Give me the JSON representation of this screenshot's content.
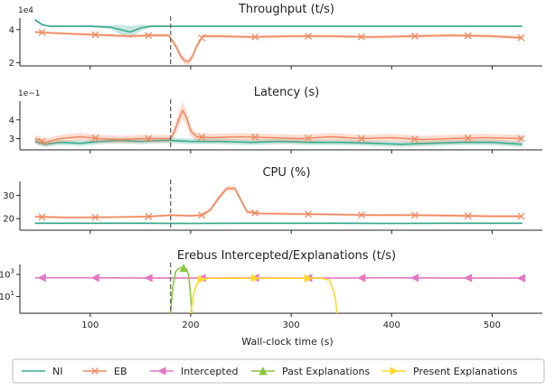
{
  "chart_data": [
    {
      "type": "line",
      "title": "Throughput (t/s)",
      "scale_label": "1e4",
      "ylim": [
        1.8,
        4.7
      ],
      "yticks": [
        {
          "v": 2,
          "label": "2"
        },
        {
          "v": 4,
          "label": "4"
        }
      ],
      "xlim": [
        30,
        550
      ],
      "series": [
        {
          "name": "NI",
          "color": "#3aa98d",
          "x": [
            45,
            52,
            60,
            80,
            100,
            120,
            130,
            140,
            150,
            160,
            180,
            220,
            260,
            300,
            340,
            380,
            420,
            460,
            500,
            530
          ],
          "y": [
            4.6,
            4.3,
            4.2,
            4.2,
            4.2,
            4.15,
            4.0,
            3.85,
            4.1,
            4.2,
            4.2,
            4.2,
            4.2,
            4.2,
            4.2,
            4.2,
            4.2,
            4.2,
            4.2,
            4.2
          ],
          "band": [
            0.08,
            0.06,
            0.05,
            0.05,
            0.05,
            0.1,
            0.3,
            0.35,
            0.2,
            0.06,
            0.05,
            0.05,
            0.05,
            0.05,
            0.05,
            0.05,
            0.05,
            0.05,
            0.05,
            0.05
          ]
        },
        {
          "name": "EB",
          "color": "#ef8a62",
          "x": [
            45,
            60,
            80,
            100,
            120,
            140,
            160,
            178,
            182,
            186,
            190,
            194,
            198,
            202,
            206,
            212,
            230,
            260,
            300,
            340,
            380,
            420,
            460,
            500,
            530
          ],
          "y": [
            3.85,
            3.8,
            3.75,
            3.7,
            3.65,
            3.6,
            3.65,
            3.65,
            3.3,
            2.9,
            2.4,
            2.1,
            2.05,
            2.4,
            3.0,
            3.6,
            3.6,
            3.55,
            3.6,
            3.6,
            3.55,
            3.6,
            3.65,
            3.6,
            3.5
          ],
          "band": [
            0.08,
            0.08,
            0.08,
            0.1,
            0.1,
            0.1,
            0.1,
            0.1,
            0.15,
            0.2,
            0.2,
            0.2,
            0.2,
            0.2,
            0.15,
            0.12,
            0.1,
            0.1,
            0.1,
            0.1,
            0.1,
            0.1,
            0.1,
            0.1,
            0.1
          ]
        }
      ]
    },
    {
      "type": "line",
      "title": "Latency (s)",
      "scale_label": "1e−1",
      "ylim": [
        2.4,
        5.0
      ],
      "yticks": [
        {
          "v": 3,
          "label": "3"
        },
        {
          "v": 4,
          "label": "4"
        }
      ],
      "xlim": [
        30,
        550
      ],
      "series": [
        {
          "name": "NI",
          "color": "#3aa98d",
          "x": [
            45,
            55,
            70,
            90,
            110,
            130,
            150,
            170,
            180,
            200,
            230,
            260,
            290,
            320,
            350,
            380,
            410,
            440,
            470,
            500,
            530
          ],
          "y": [
            2.85,
            2.7,
            2.8,
            2.75,
            2.85,
            2.9,
            2.85,
            2.9,
            2.9,
            2.85,
            2.85,
            2.8,
            2.85,
            2.8,
            2.8,
            2.75,
            2.7,
            2.75,
            2.8,
            2.8,
            2.7
          ],
          "band": [
            0.15,
            0.15,
            0.15,
            0.15,
            0.15,
            0.15,
            0.15,
            0.15,
            0.15,
            0.15,
            0.15,
            0.15,
            0.15,
            0.15,
            0.15,
            0.15,
            0.15,
            0.15,
            0.15,
            0.15,
            0.15
          ]
        },
        {
          "name": "EB",
          "color": "#ef8a62",
          "x": [
            45,
            55,
            70,
            90,
            110,
            130,
            150,
            170,
            180,
            184,
            188,
            192,
            196,
            200,
            206,
            220,
            250,
            280,
            310,
            340,
            370,
            400,
            430,
            460,
            490,
            530
          ],
          "y": [
            3.0,
            2.8,
            3.0,
            3.1,
            3.0,
            2.95,
            3.0,
            3.0,
            3.0,
            3.4,
            4.0,
            4.5,
            4.1,
            3.4,
            3.1,
            3.05,
            3.1,
            3.05,
            3.0,
            3.1,
            3.0,
            3.05,
            2.95,
            3.0,
            3.05,
            3.0
          ],
          "band": [
            0.2,
            0.2,
            0.2,
            0.2,
            0.2,
            0.2,
            0.2,
            0.2,
            0.2,
            0.3,
            0.4,
            0.45,
            0.4,
            0.3,
            0.2,
            0.2,
            0.2,
            0.2,
            0.2,
            0.2,
            0.2,
            0.2,
            0.2,
            0.2,
            0.2,
            0.2
          ]
        }
      ]
    },
    {
      "type": "line",
      "title": "CPU (%)",
      "scale_label": "",
      "ylim": [
        15,
        36
      ],
      "yticks": [
        {
          "v": 20,
          "label": "20"
        },
        {
          "v": 30,
          "label": "30"
        }
      ],
      "xlim": [
        30,
        550
      ],
      "series": [
        {
          "name": "NI",
          "color": "#3aa98d",
          "x": [
            45,
            100,
            150,
            200,
            250,
            300,
            350,
            400,
            450,
            500,
            530
          ],
          "y": [
            18.0,
            18.0,
            18.0,
            17.9,
            18.0,
            18.0,
            18.0,
            17.9,
            18.0,
            18.0,
            18.0
          ],
          "band": [
            0.4,
            0.4,
            0.4,
            0.4,
            0.4,
            0.4,
            0.4,
            0.4,
            0.4,
            0.4,
            0.4
          ]
        },
        {
          "name": "EB",
          "color": "#ef8a62",
          "x": [
            45,
            80,
            120,
            160,
            180,
            200,
            212,
            220,
            228,
            236,
            244,
            250,
            256,
            262,
            270,
            300,
            340,
            380,
            420,
            460,
            500,
            530
          ],
          "y": [
            20.8,
            20.5,
            20.6,
            20.9,
            21.5,
            21.2,
            21.5,
            24,
            29,
            33,
            33,
            28,
            23,
            22.5,
            22.2,
            22.0,
            21.8,
            21.5,
            21.5,
            21.3,
            21.0,
            21.0
          ],
          "band": [
            0.5,
            0.5,
            0.5,
            0.5,
            0.5,
            0.5,
            0.8,
            1.0,
            1.2,
            1.2,
            1.2,
            1.2,
            1.0,
            0.8,
            0.8,
            0.6,
            0.6,
            0.6,
            0.6,
            0.6,
            0.6,
            0.6
          ]
        }
      ]
    },
    {
      "type": "line",
      "title": "Erebus Intercepted/Explanations (t/s)",
      "scale_label": "",
      "y_scale": "log",
      "ylim": [
        0.3,
        8000
      ],
      "yticks": [
        {
          "v": 10,
          "label": "10",
          "exp": "1"
        },
        {
          "v": 1000,
          "label": "10",
          "exp": "3"
        }
      ],
      "xlim": [
        30,
        550
      ],
      "series": [
        {
          "name": "Intercepted",
          "color": "#e377c2",
          "x": [
            45,
            100,
            150,
            180,
            200,
            250,
            300,
            350,
            400,
            450,
            500,
            530
          ],
          "y": [
            500,
            500,
            480,
            480,
            480,
            500,
            480,
            480,
            500,
            480,
            480,
            460
          ]
        },
        {
          "name": "Past Explanations",
          "color": "#8cc63f",
          "x": [
            180,
            182,
            185,
            188,
            192,
            196,
            198,
            200,
            201
          ],
          "y": [
            0.3,
            60,
            1800,
            3500,
            4200,
            3000,
            800,
            10,
            0.3
          ]
        },
        {
          "name": "Present Explanations",
          "color": "#ffd92f",
          "x": [
            200,
            203,
            207,
            212,
            220,
            260,
            300,
            330,
            338,
            343,
            346
          ],
          "y": [
            0.3,
            20,
            200,
            400,
            450,
            450,
            450,
            450,
            300,
            20,
            0.3
          ]
        }
      ]
    }
  ],
  "event_line_x": 180,
  "x_axis": {
    "label": "Wall-clock time (s)",
    "ticks": [
      100,
      200,
      300,
      400,
      500
    ]
  },
  "legend": [
    {
      "name": "NI",
      "color": "#3aa98d",
      "marker": "none"
    },
    {
      "name": "EB",
      "color": "#ef8a62",
      "marker": "x"
    },
    {
      "name": "Intercepted",
      "color": "#e377c2",
      "marker": "tri-left"
    },
    {
      "name": "Past Explanations",
      "color": "#8cc63f",
      "marker": "tri-up"
    },
    {
      "name": "Present Explanations",
      "color": "#ffd92f",
      "marker": "tri-right"
    }
  ]
}
